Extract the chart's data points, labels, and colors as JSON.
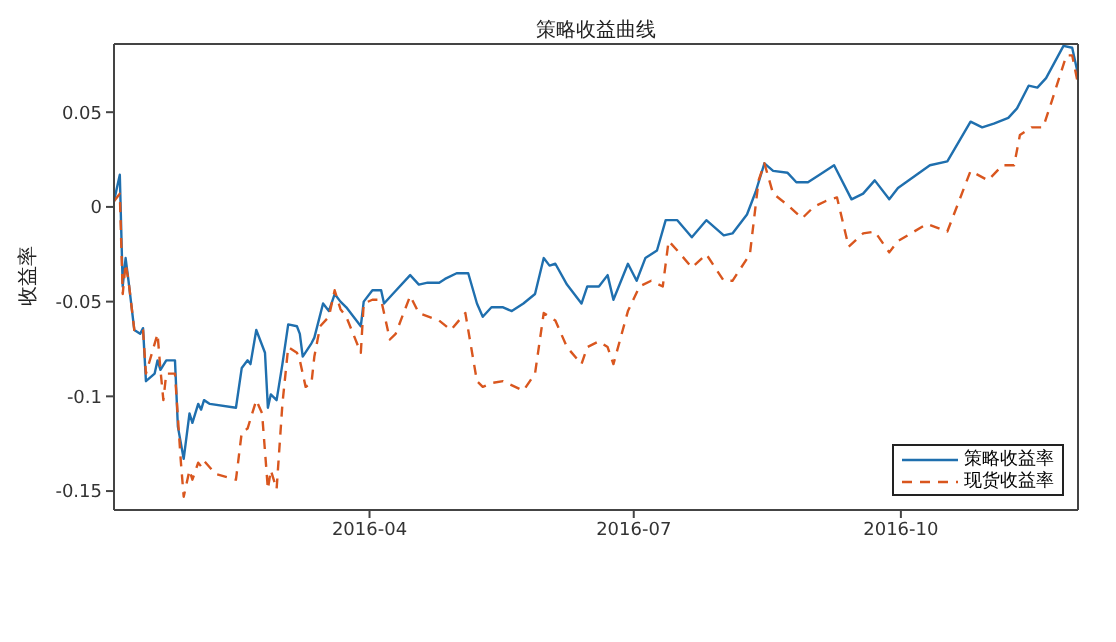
{
  "chart_data": {
    "type": "line",
    "title": "策略收益曲线",
    "ylabel": "收益率",
    "legend": "bottom right",
    "xlim": [
      "2016-01-04",
      "2016-12-01"
    ],
    "xticks": [
      {
        "value": "2016-04-01",
        "label": "2016-04"
      },
      {
        "value": "2016-07-01",
        "label": "2016-07"
      },
      {
        "value": "2016-10-01",
        "label": "2016-10"
      }
    ],
    "ylim": [
      -0.16,
      0.086
    ],
    "yticks": [
      -0.15,
      -0.1,
      -0.05,
      0,
      0.05
    ],
    "series": [
      {
        "name": "策略收益率",
        "color": "#1f6fae",
        "line_style": "solid",
        "x": [
          "2016-01-04",
          "2016-01-06",
          "2016-01-07",
          "2016-01-08",
          "2016-01-09",
          "2016-01-11",
          "2016-01-13",
          "2016-01-14",
          "2016-01-15",
          "2016-01-18",
          "2016-01-19",
          "2016-01-20",
          "2016-01-22",
          "2016-01-25",
          "2016-01-26",
          "2016-01-28",
          "2016-01-30",
          "2016-01-31",
          "2016-02-02",
          "2016-02-03",
          "2016-02-04",
          "2016-02-06",
          "2016-02-15",
          "2016-02-17",
          "2016-02-19",
          "2016-02-20",
          "2016-02-22",
          "2016-02-25",
          "2016-02-26",
          "2016-02-27",
          "2016-02-29",
          "2016-03-02",
          "2016-03-04",
          "2016-03-07",
          "2016-03-08",
          "2016-03-09",
          "2016-03-12",
          "2016-03-13",
          "2016-03-16",
          "2016-03-18",
          "2016-03-20",
          "2016-03-22",
          "2016-03-24",
          "2016-03-29",
          "2016-03-30",
          "2016-04-02",
          "2016-04-05",
          "2016-04-06",
          "2016-04-09",
          "2016-04-15",
          "2016-04-18",
          "2016-04-21",
          "2016-04-25",
          "2016-04-27",
          "2016-05-01",
          "2016-05-05",
          "2016-05-08",
          "2016-05-10",
          "2016-05-13",
          "2016-05-17",
          "2016-05-20",
          "2016-05-24",
          "2016-05-28",
          "2016-05-31",
          "2016-06-02",
          "2016-06-04",
          "2016-06-08",
          "2016-06-13",
          "2016-06-15",
          "2016-06-19",
          "2016-06-22",
          "2016-06-24",
          "2016-06-29",
          "2016-07-02",
          "2016-07-05",
          "2016-07-09",
          "2016-07-12",
          "2016-07-16",
          "2016-07-21",
          "2016-07-26",
          "2016-08-01",
          "2016-08-04",
          "2016-08-09",
          "2016-08-12",
          "2016-08-15",
          "2016-08-18",
          "2016-08-23",
          "2016-08-26",
          "2016-08-30",
          "2016-09-03",
          "2016-09-08",
          "2016-09-14",
          "2016-09-18",
          "2016-09-22",
          "2016-09-27",
          "2016-09-30",
          "2016-10-11",
          "2016-10-17",
          "2016-10-25",
          "2016-10-29",
          "2016-11-02",
          "2016-11-07",
          "2016-11-10",
          "2016-11-14",
          "2016-11-17",
          "2016-11-20",
          "2016-11-26",
          "2016-11-29",
          "2016-12-01"
        ],
        "values": [
          0.003,
          0.017,
          -0.042,
          -0.027,
          -0.039,
          -0.065,
          -0.067,
          -0.064,
          -0.092,
          -0.088,
          -0.081,
          -0.086,
          -0.081,
          -0.081,
          -0.116,
          -0.133,
          -0.109,
          -0.114,
          -0.104,
          -0.107,
          -0.102,
          -0.104,
          -0.106,
          -0.085,
          -0.081,
          -0.083,
          -0.065,
          -0.077,
          -0.106,
          -0.099,
          -0.102,
          -0.083,
          -0.062,
          -0.063,
          -0.067,
          -0.079,
          -0.072,
          -0.069,
          -0.051,
          -0.055,
          -0.046,
          -0.05,
          -0.053,
          -0.063,
          -0.05,
          -0.044,
          -0.044,
          -0.051,
          -0.046,
          -0.036,
          -0.041,
          -0.04,
          -0.04,
          -0.038,
          -0.035,
          -0.035,
          -0.051,
          -0.058,
          -0.053,
          -0.053,
          -0.055,
          -0.051,
          -0.046,
          -0.027,
          -0.031,
          -0.03,
          -0.041,
          -0.051,
          -0.042,
          -0.042,
          -0.036,
          -0.049,
          -0.03,
          -0.039,
          -0.027,
          -0.023,
          -0.007,
          -0.007,
          -0.016,
          -0.007,
          -0.015,
          -0.014,
          -0.004,
          0.008,
          0.023,
          0.019,
          0.018,
          0.013,
          0.013,
          0.017,
          0.022,
          0.004,
          0.007,
          0.014,
          0.004,
          0.01,
          0.022,
          0.024,
          0.045,
          0.042,
          0.044,
          0.047,
          0.052,
          0.064,
          0.063,
          0.068,
          0.085,
          0.084,
          0.07
        ]
      },
      {
        "name": "现货收益率",
        "color": "#d9561e",
        "line_style": "dashed",
        "x": [
          "2016-01-04",
          "2016-01-06",
          "2016-01-07",
          "2016-01-08",
          "2016-01-09",
          "2016-01-11",
          "2016-01-14",
          "2016-01-15",
          "2016-01-19",
          "2016-01-20",
          "2016-01-21",
          "2016-01-22",
          "2016-01-25",
          "2016-01-27",
          "2016-01-28",
          "2016-01-30",
          "2016-01-31",
          "2016-02-02",
          "2016-02-03",
          "2016-02-04",
          "2016-02-08",
          "2016-02-15",
          "2016-02-17",
          "2016-02-19",
          "2016-02-22",
          "2016-02-24",
          "2016-02-26",
          "2016-02-27",
          "2016-02-29",
          "2016-03-02",
          "2016-03-04",
          "2016-03-07",
          "2016-03-08",
          "2016-03-10",
          "2016-03-12",
          "2016-03-13",
          "2016-03-15",
          "2016-03-18",
          "2016-03-20",
          "2016-03-22",
          "2016-03-24",
          "2016-03-29",
          "2016-03-30",
          "2016-04-02",
          "2016-04-05",
          "2016-04-08",
          "2016-04-10",
          "2016-04-15",
          "2016-04-18",
          "2016-04-25",
          "2016-04-29",
          "2016-05-04",
          "2016-05-08",
          "2016-05-10",
          "2016-05-13",
          "2016-05-17",
          "2016-05-24",
          "2016-05-28",
          "2016-05-31",
          "2016-06-04",
          "2016-06-08",
          "2016-06-13",
          "2016-06-15",
          "2016-06-19",
          "2016-06-22",
          "2016-06-24",
          "2016-06-29",
          "2016-07-03",
          "2016-07-07",
          "2016-07-11",
          "2016-07-13",
          "2016-07-16",
          "2016-07-21",
          "2016-07-26",
          "2016-08-01",
          "2016-08-04",
          "2016-08-10",
          "2016-08-13",
          "2016-08-15",
          "2016-08-18",
          "2016-08-23",
          "2016-08-28",
          "2016-09-01",
          "2016-09-05",
          "2016-09-09",
          "2016-09-13",
          "2016-09-18",
          "2016-09-22",
          "2016-09-27",
          "2016-09-30",
          "2016-10-10",
          "2016-10-17",
          "2016-10-25",
          "2016-10-31",
          "2016-11-05",
          "2016-11-09",
          "2016-11-11",
          "2016-11-15",
          "2016-11-19",
          "2016-11-22",
          "2016-11-27",
          "2016-11-29",
          "2016-12-01"
        ],
        "values": [
          0.003,
          0.007,
          -0.046,
          -0.03,
          -0.039,
          -0.065,
          -0.065,
          -0.088,
          -0.067,
          -0.086,
          -0.102,
          -0.088,
          -0.088,
          -0.134,
          -0.153,
          -0.139,
          -0.144,
          -0.135,
          -0.137,
          -0.134,
          -0.141,
          -0.144,
          -0.119,
          -0.117,
          -0.102,
          -0.109,
          -0.149,
          -0.139,
          -0.149,
          -0.104,
          -0.074,
          -0.077,
          -0.081,
          -0.095,
          -0.093,
          -0.079,
          -0.063,
          -0.058,
          -0.044,
          -0.054,
          -0.058,
          -0.077,
          -0.051,
          -0.049,
          -0.049,
          -0.07,
          -0.067,
          -0.047,
          -0.056,
          -0.06,
          -0.065,
          -0.056,
          -0.092,
          -0.095,
          -0.093,
          -0.092,
          -0.097,
          -0.088,
          -0.056,
          -0.06,
          -0.074,
          -0.083,
          -0.074,
          -0.071,
          -0.074,
          -0.083,
          -0.055,
          -0.042,
          -0.039,
          -0.042,
          -0.018,
          -0.023,
          -0.032,
          -0.025,
          -0.039,
          -0.039,
          -0.025,
          0.014,
          0.023,
          0.007,
          0.001,
          -0.006,
          0.0,
          0.003,
          0.005,
          -0.021,
          -0.014,
          -0.013,
          -0.024,
          -0.018,
          -0.009,
          -0.013,
          0.019,
          0.014,
          0.022,
          0.022,
          0.038,
          0.042,
          0.042,
          0.056,
          0.08,
          0.08,
          0.065
        ]
      }
    ]
  }
}
